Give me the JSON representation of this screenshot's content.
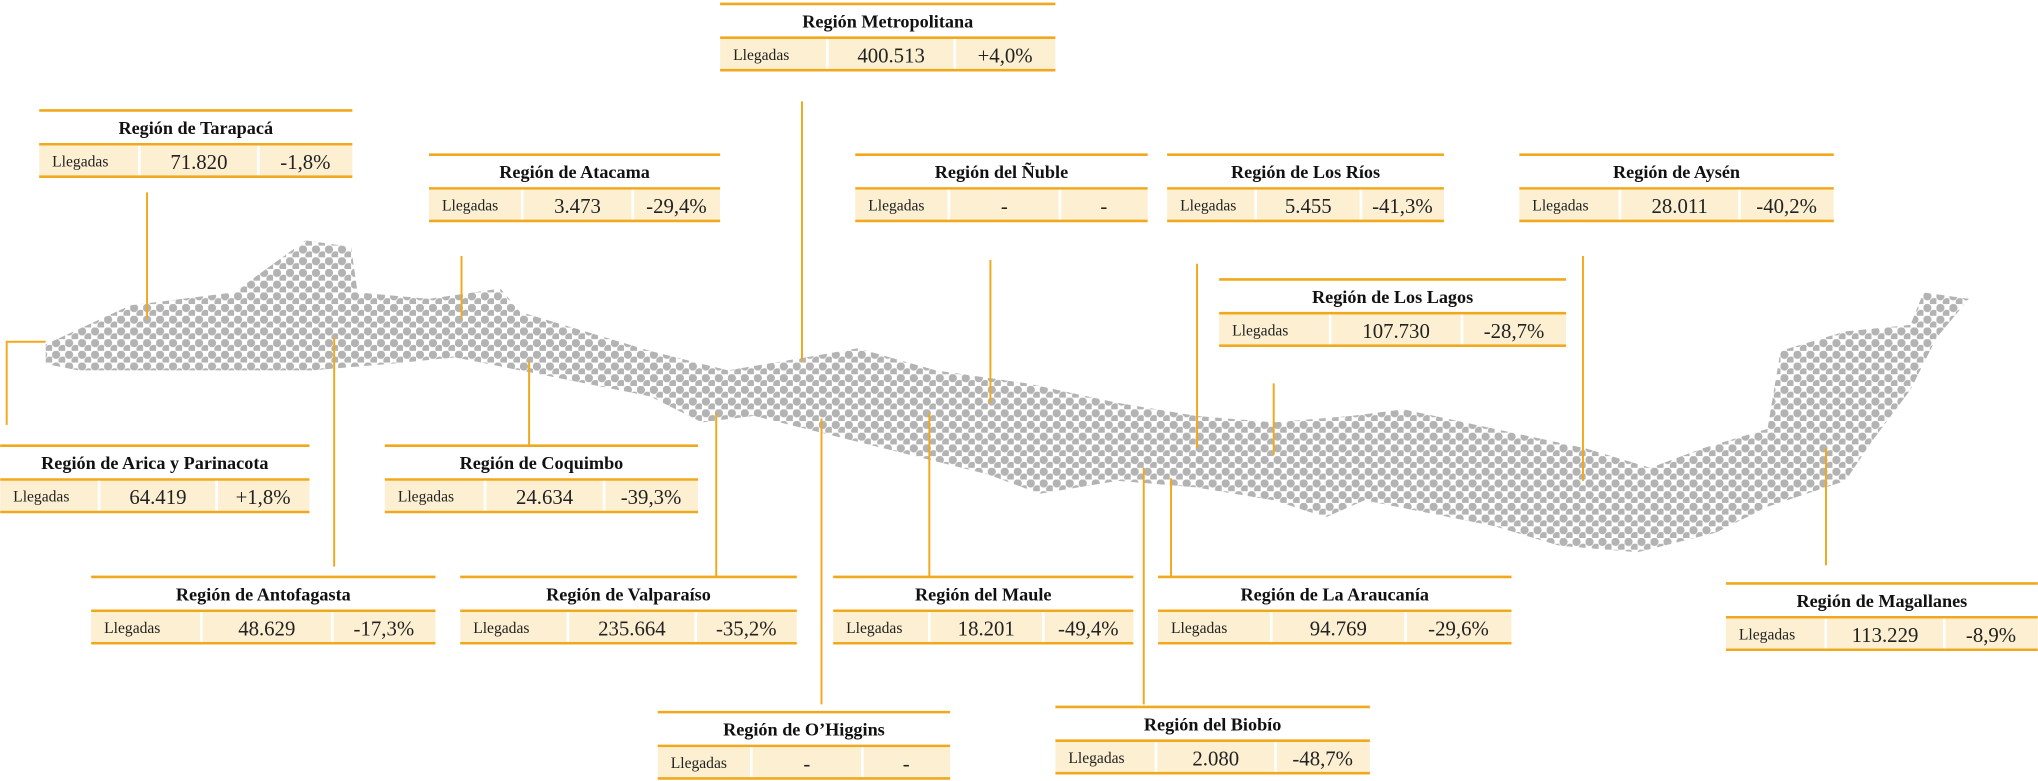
{
  "regions": [
    {
      "name": "Región  Metropolitana",
      "label": "Llegadas",
      "value": "400.513",
      "change": "+4,0%"
    },
    {
      "name": "Región de Tarapacá",
      "label": "Llegadas",
      "value": "71.820",
      "change": "-1,8%"
    },
    {
      "name": "Región de Atacama",
      "label": "Llegadas",
      "value": "3.473",
      "change": "-29,4%"
    },
    {
      "name": "Región del Ñuble",
      "label": "Llegadas",
      "value": "-",
      "change": "-"
    },
    {
      "name": "Región de Los Ríos",
      "label": "Llegadas",
      "value": "5.455",
      "change": "-41,3%"
    },
    {
      "name": "Región de Aysén",
      "label": "Llegadas",
      "value": "28.011",
      "change": "-40,2%"
    },
    {
      "name": "Región de Los Lagos",
      "label": "Llegadas",
      "value": "107.730",
      "change": "-28,7%"
    },
    {
      "name": "Región de Arica y Parinacota",
      "label": "Llegadas",
      "value": "64.419",
      "change": "+1,8%"
    },
    {
      "name": "Región de Coquimbo",
      "label": "Llegadas",
      "value": "24.634",
      "change": "-39,3%"
    },
    {
      "name": "Región de Antofagasta",
      "label": "Llegadas",
      "value": "48.629",
      "change": "-17,3%"
    },
    {
      "name": "Región de Valparaíso",
      "label": "Llegadas",
      "value": "235.664",
      "change": "-35,2%"
    },
    {
      "name": "Región del Maule",
      "label": "Llegadas",
      "value": "18.201",
      "change": "-49,4%"
    },
    {
      "name": "Región de La Araucanía",
      "label": "Llegadas",
      "value": "94.769",
      "change": "-29,6%"
    },
    {
      "name": "Región de Magallanes",
      "label": "Llegadas",
      "value": "113.229",
      "change": "-8,9%"
    },
    {
      "name": "Región de O’Higgins",
      "label": "Llegadas",
      "value": "-",
      "change": "-"
    },
    {
      "name": "Región del Biobío",
      "label": "Llegadas",
      "value": "2.080",
      "change": "-48,7%"
    }
  ]
}
